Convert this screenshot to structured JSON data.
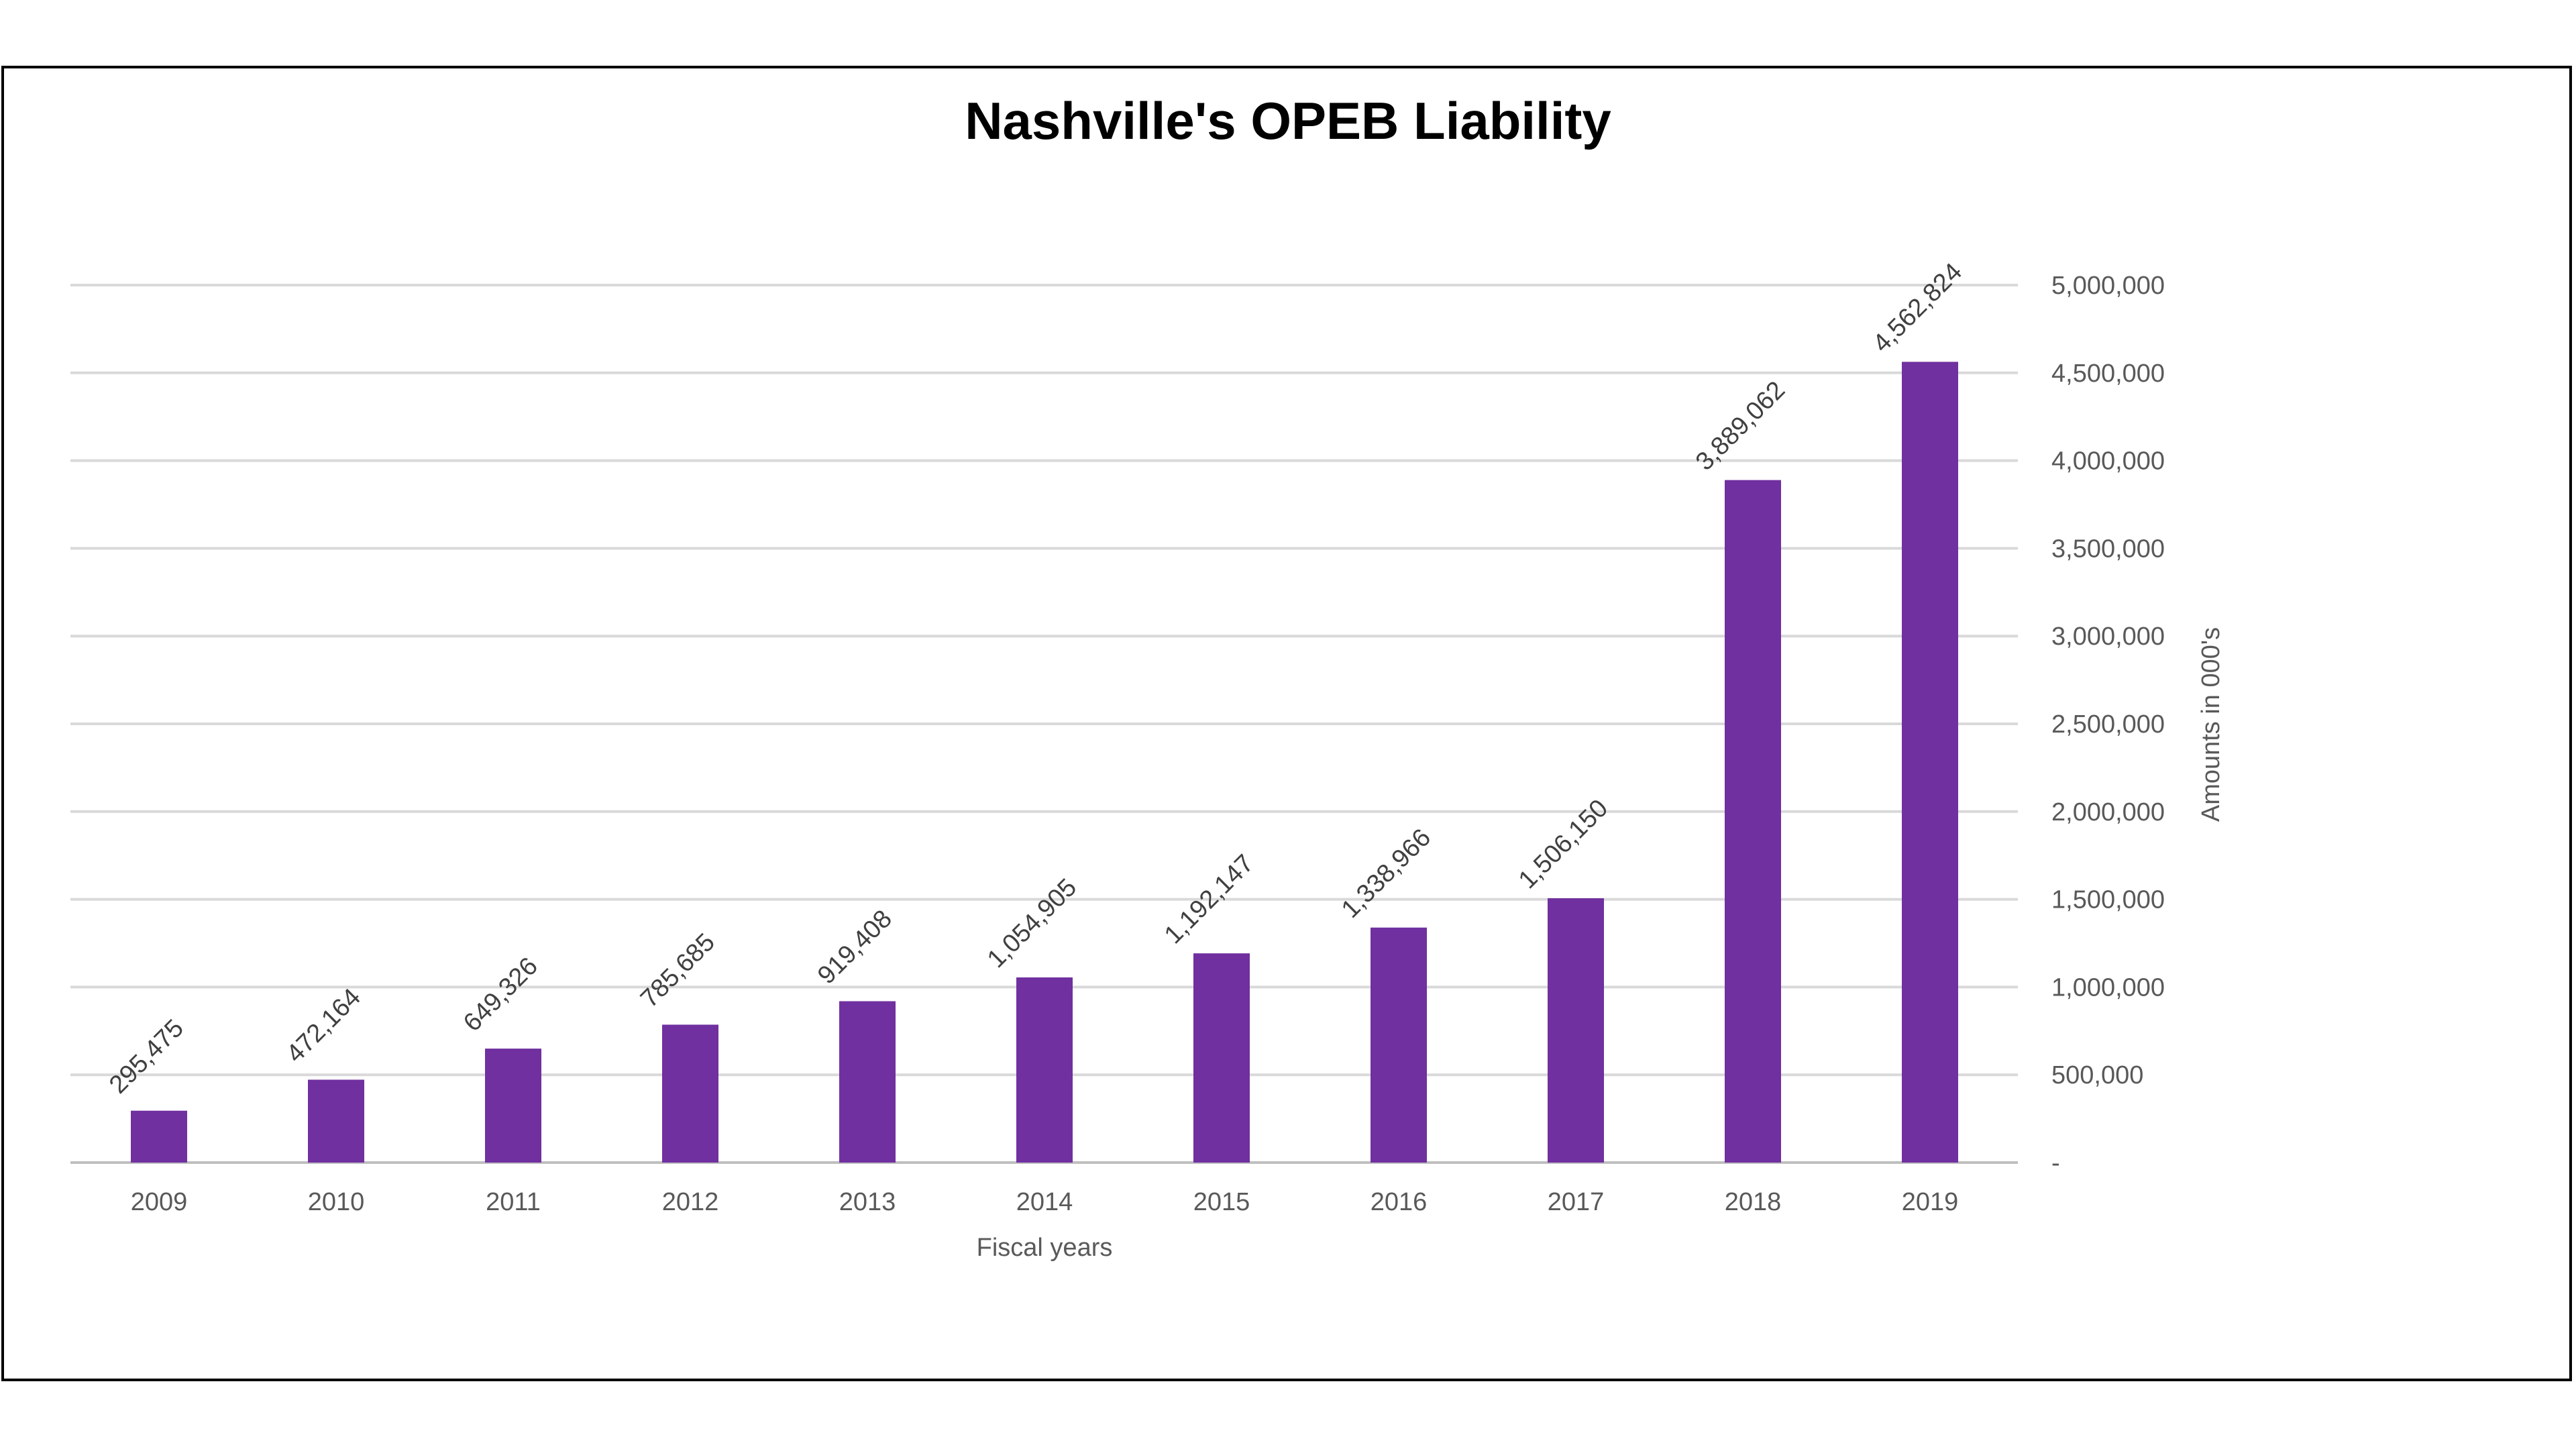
{
  "chart_data": {
    "type": "bar",
    "title": "Nashville's OPEB Liability",
    "xlabel": "Fiscal years",
    "ylabel": "Amounts in 000's",
    "categories": [
      "2009",
      "2010",
      "2011",
      "2012",
      "2013",
      "2014",
      "2015",
      "2016",
      "2017",
      "2018",
      "2019"
    ],
    "values": [
      295475,
      472164,
      649326,
      785685,
      919408,
      1054905,
      1192147,
      1338966,
      1506150,
      3889062,
      4562824
    ],
    "data_labels": [
      "295,475",
      "472,164",
      "649,326",
      "785,685",
      "919,408",
      "1,054,905",
      "1,192,147",
      "1,338,966",
      "1,506,150",
      "3,889,062",
      "4,562,824"
    ],
    "y_ticks": [
      0,
      500000,
      1000000,
      1500000,
      2000000,
      2500000,
      3000000,
      3500000,
      4000000,
      4500000,
      5000000
    ],
    "y_tick_labels": [
      "-",
      "500,000",
      "1,000,000",
      "1,500,000",
      "2,000,000",
      "2,500,000",
      "3,000,000",
      "3,500,000",
      "4,000,000",
      "4,500,000",
      "5,000,000"
    ],
    "ylim": [
      0,
      5000000
    ],
    "y_axis_side": "right",
    "grid": true,
    "bar_color": "#7030a0",
    "data_label_rotation": "diagonal"
  }
}
